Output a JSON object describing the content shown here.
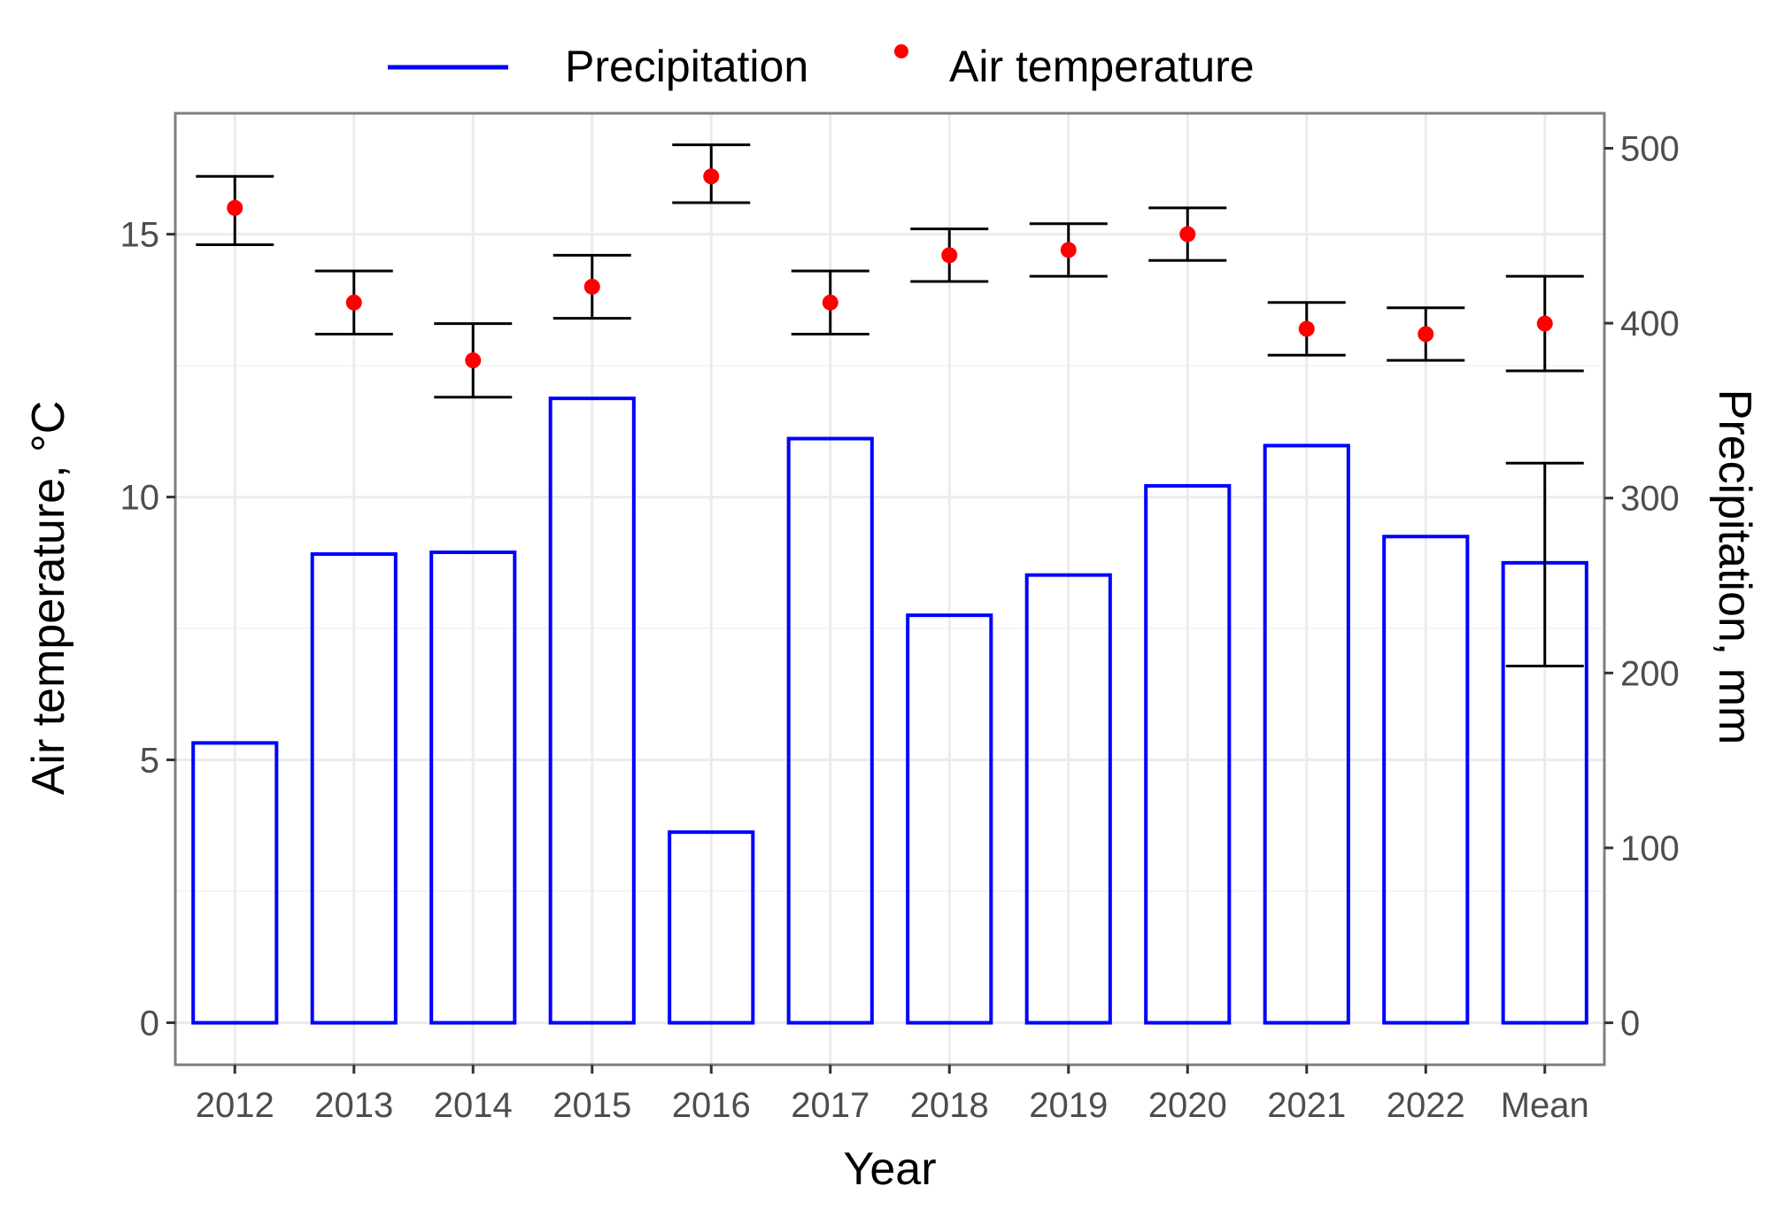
{
  "chart_data": {
    "type": "bar",
    "title": "",
    "xlabel": "Year",
    "ylabel_left": "Air temperature, °C",
    "ylabel_right": "Precipitation, mm",
    "categories": [
      "2012",
      "2013",
      "2014",
      "2015",
      "2016",
      "2017",
      "2018",
      "2019",
      "2020",
      "2021",
      "2022",
      "Mean"
    ],
    "series": [
      {
        "name": "Precipitation",
        "type": "bar",
        "axis": "right",
        "color": "#0000ff",
        "values": [
          160,
          268,
          269,
          357,
          109,
          334,
          233,
          256,
          307,
          330,
          278,
          263
        ],
        "error": {
          "category": "Mean",
          "low": 204,
          "high": 320
        }
      },
      {
        "name": "Air temperature",
        "type": "scatter",
        "axis": "left",
        "color": "#ff0000",
        "values": [
          15.5,
          13.7,
          12.6,
          14.0,
          16.1,
          13.7,
          14.6,
          14.7,
          15.0,
          13.2,
          13.1,
          13.3
        ],
        "error_low": [
          14.8,
          13.1,
          11.9,
          13.4,
          15.6,
          13.1,
          14.1,
          14.2,
          14.5,
          12.7,
          12.6,
          12.4
        ],
        "error_high": [
          16.1,
          14.3,
          13.3,
          14.6,
          16.7,
          14.3,
          15.1,
          15.2,
          15.5,
          13.7,
          13.6,
          14.2
        ]
      }
    ],
    "ylim_left": [
      -0.8,
      17.3
    ],
    "ylim_right": [
      -24,
      520
    ],
    "yticks_left": [
      0,
      5,
      10,
      15
    ],
    "yticks_right": [
      0,
      100,
      200,
      300,
      400,
      500
    ],
    "grid": true,
    "legend": {
      "position": "top",
      "entries": [
        {
          "label": "Precipitation",
          "symbol": "line",
          "color": "#0000ff"
        },
        {
          "label": "Air temperature",
          "symbol": "point",
          "color": "#ff0000"
        }
      ]
    }
  }
}
